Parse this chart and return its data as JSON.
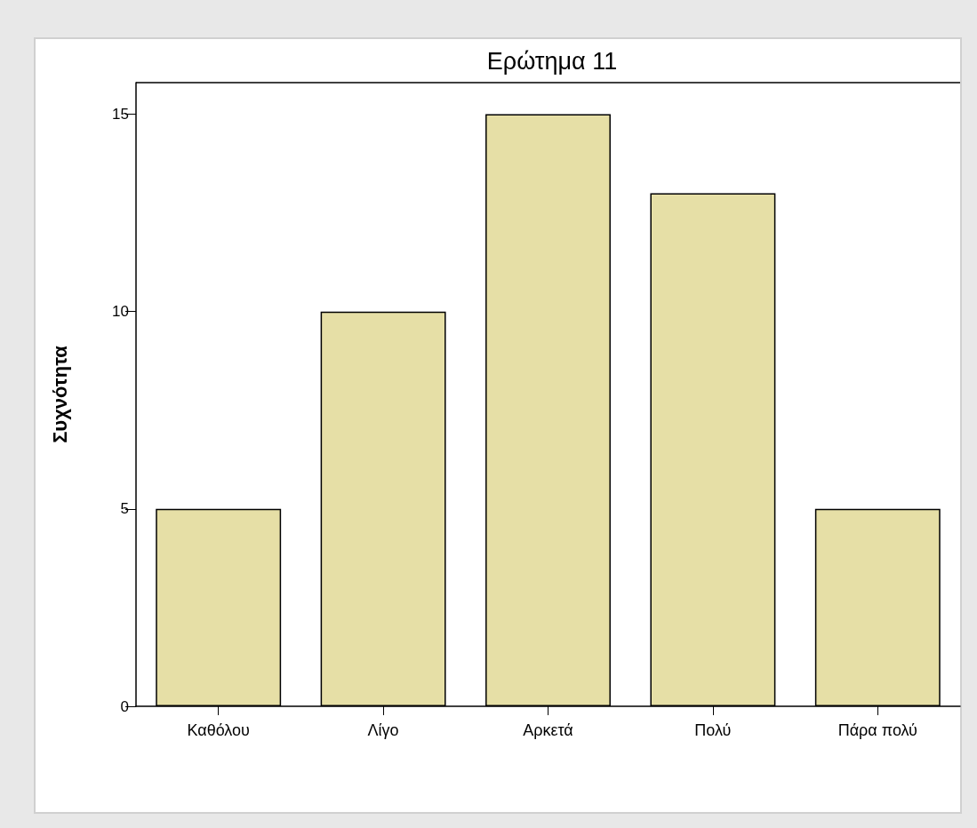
{
  "chart_data": {
    "type": "bar",
    "title": "Ερώτημα 11",
    "ylabel": "Συχνότητα",
    "categories": [
      "Καθόλου",
      "Λίγο",
      "Αρκετά",
      "Πολύ",
      "Πάρα πολύ"
    ],
    "values": [
      5,
      10,
      15,
      13,
      5
    ],
    "color": "#e6dfa6",
    "ylim": [
      0,
      15.8
    ],
    "yticks": [
      0,
      5,
      10,
      15
    ]
  }
}
